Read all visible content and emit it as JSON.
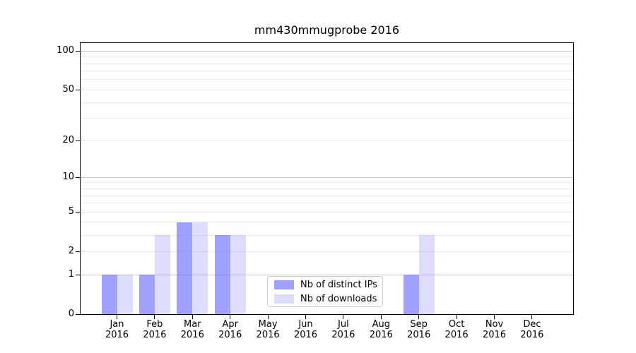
{
  "chart_data": {
    "type": "bar",
    "title": "mm430mmugprobe 2016",
    "x_axis": {
      "categories": [
        "Jan",
        "Feb",
        "Mar",
        "Apr",
        "May",
        "Jun",
        "Jul",
        "Aug",
        "Sep",
        "Oct",
        "Nov",
        "Dec"
      ],
      "year_label": "2016"
    },
    "y_axis": {
      "scale": "log1p",
      "ticks": [
        0,
        1,
        2,
        5,
        10,
        20,
        50,
        100
      ],
      "minor_gridlines": [
        3,
        4,
        6,
        7,
        8,
        9,
        30,
        40,
        60,
        70,
        80,
        90
      ],
      "decade_gridlines": [
        1,
        10,
        100
      ],
      "max": 115
    },
    "series": [
      {
        "name": "Nb of distinct IPs",
        "color": "rgba(102,102,255,0.62)",
        "values": [
          1,
          1,
          4,
          3,
          0,
          0,
          0,
          0,
          1,
          0,
          0,
          0
        ]
      },
      {
        "name": "Nb of downloads",
        "color": "rgba(102,102,255,0.22)",
        "values": [
          1,
          3,
          4,
          3,
          0,
          0,
          0,
          0,
          3,
          0,
          0,
          0
        ]
      }
    ],
    "grid": {
      "orientation": "horizontal",
      "major_color": "#c9c9c9",
      "minor_color": "#ebebeb"
    },
    "legend": {
      "position": "lower-center",
      "border_color": "#cccccc",
      "background": "#ffffff"
    }
  }
}
